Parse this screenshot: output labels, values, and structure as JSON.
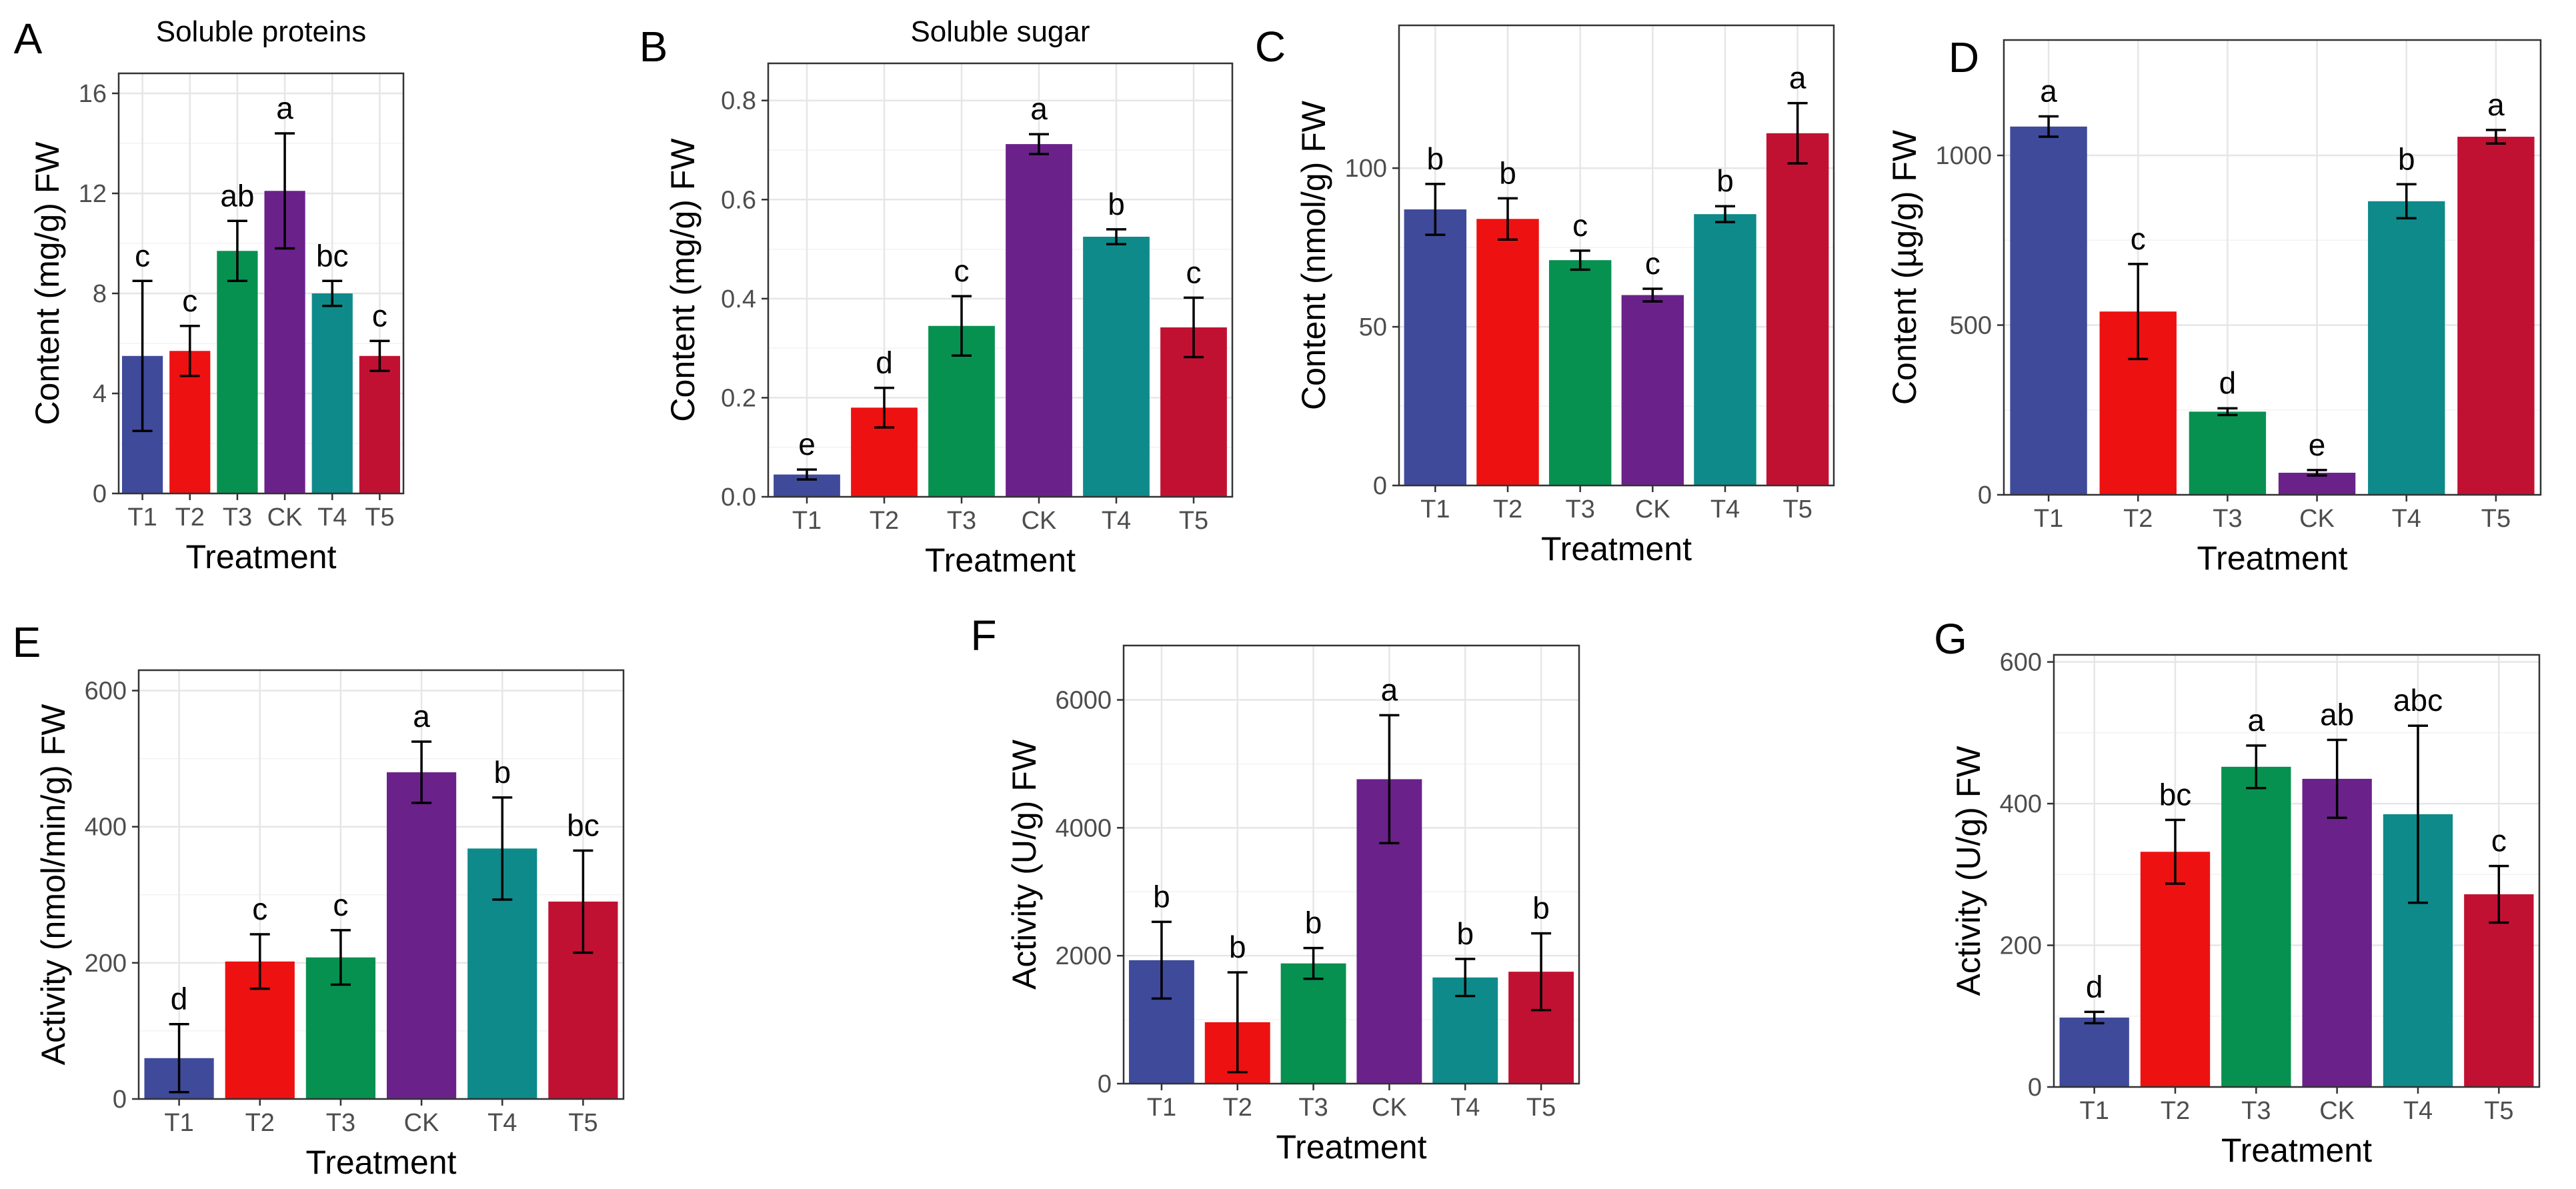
{
  "chart_data": [
    {
      "panel": "A",
      "type": "bar",
      "title": "Soluble proteins",
      "xlabel": "Treatment",
      "ylabel": "Content (mg/g) FW",
      "categories": [
        "T1",
        "T2",
        "T3",
        "CK",
        "T4",
        "T5"
      ],
      "values": [
        5.5,
        5.7,
        9.7,
        12.1,
        8.0,
        5.5
      ],
      "errors": [
        3.0,
        1.0,
        1.2,
        2.3,
        0.5,
        0.6
      ],
      "significance": [
        "c",
        "c",
        "ab",
        "a",
        "bc",
        "c"
      ],
      "ylim": [
        0,
        16.8
      ],
      "yticks": [
        0,
        4,
        8,
        12,
        16
      ],
      "ytick_labels": [
        "0",
        "4",
        "8",
        "12",
        "16"
      ],
      "colors": [
        "#3F4A9A",
        "#EE1111",
        "#079150",
        "#6A228A",
        "#0E8A8A",
        "#C11133"
      ],
      "grid": true,
      "legend": "none"
    },
    {
      "panel": "B",
      "type": "bar",
      "title": "Soluble sugar",
      "xlabel": "Treatment",
      "ylabel": "Content (mg/g) FW",
      "categories": [
        "T1",
        "T2",
        "T3",
        "CK",
        "T4",
        "T5"
      ],
      "values": [
        0.045,
        0.18,
        0.345,
        0.712,
        0.525,
        0.342
      ],
      "errors": [
        0.01,
        0.04,
        0.06,
        0.02,
        0.015,
        0.06
      ],
      "significance": [
        "e",
        "d",
        "c",
        "a",
        "b",
        "c"
      ],
      "ylim": [
        0,
        0.875
      ],
      "yticks": [
        0,
        0.2,
        0.4,
        0.6,
        0.8
      ],
      "ytick_labels": [
        "0.0",
        "0.2",
        "0.4",
        "0.6",
        "0.8"
      ],
      "colors": [
        "#3F4A9A",
        "#EE1111",
        "#079150",
        "#6A228A",
        "#0E8A8A",
        "#C11133"
      ],
      "grid": true,
      "legend": "none"
    },
    {
      "panel": "C",
      "type": "bar",
      "title": "",
      "xlabel": "Treatment",
      "ylabel": "Content (nmol/g) FW",
      "categories": [
        "T1",
        "T2",
        "T3",
        "CK",
        "T4",
        "T5"
      ],
      "values": [
        87,
        84,
        71,
        60,
        85.5,
        111
      ],
      "errors": [
        8,
        6.5,
        3,
        2,
        2.5,
        9.5
      ],
      "significance": [
        "b",
        "b",
        "c",
        "c",
        "b",
        "a"
      ],
      "ylim": [
        0,
        145
      ],
      "yticks": [
        0,
        50,
        100
      ],
      "ytick_labels": [
        "0",
        "50",
        "100"
      ],
      "colors": [
        "#3F4A9A",
        "#EE1111",
        "#079150",
        "#6A228A",
        "#0E8A8A",
        "#C11133"
      ],
      "grid": true,
      "legend": "none"
    },
    {
      "panel": "D",
      "type": "bar",
      "title": "",
      "xlabel": "Treatment",
      "ylabel": "Content (µg/g) FW",
      "categories": [
        "T1",
        "T2",
        "T3",
        "CK",
        "T4",
        "T5"
      ],
      "values": [
        1085,
        540,
        245,
        65,
        865,
        1055
      ],
      "errors": [
        30,
        140,
        10,
        8,
        50,
        20
      ],
      "significance": [
        "a",
        "c",
        "d",
        "e",
        "b",
        "a"
      ],
      "ylim": [
        0,
        1340
      ],
      "yticks": [
        0,
        500,
        1000
      ],
      "ytick_labels": [
        "0",
        "500",
        "1000"
      ],
      "colors": [
        "#3F4A9A",
        "#EE1111",
        "#079150",
        "#6A228A",
        "#0E8A8A",
        "#C11133"
      ],
      "grid": true,
      "legend": "none"
    },
    {
      "panel": "E",
      "type": "bar",
      "title": "",
      "xlabel": "Treatment",
      "ylabel": "Activity (nmol/min/g) FW",
      "categories": [
        "T1",
        "T2",
        "T3",
        "CK",
        "T4",
        "T5"
      ],
      "values": [
        60,
        202,
        208,
        480,
        368,
        290
      ],
      "errors": [
        50,
        40,
        40,
        45,
        75,
        75
      ],
      "significance": [
        "d",
        "c",
        "c",
        "a",
        "b",
        "bc"
      ],
      "ylim": [
        0,
        630
      ],
      "yticks": [
        0,
        200,
        400,
        600
      ],
      "ytick_labels": [
        "0",
        "200",
        "400",
        "600"
      ],
      "colors": [
        "#3F4A9A",
        "#EE1111",
        "#079150",
        "#6A228A",
        "#0E8A8A",
        "#C11133"
      ],
      "grid": true,
      "legend": "none"
    },
    {
      "panel": "F",
      "type": "bar",
      "title": "",
      "xlabel": "Treatment",
      "ylabel": "Activity (U/g) FW",
      "categories": [
        "T1",
        "T2",
        "T3",
        "CK",
        "T4",
        "T5"
      ],
      "values": [
        1930,
        960,
        1880,
        4760,
        1660,
        1750
      ],
      "errors": [
        600,
        780,
        240,
        1000,
        290,
        600
      ],
      "significance": [
        "b",
        "b",
        "b",
        "a",
        "b",
        "b"
      ],
      "ylim": [
        0,
        6850
      ],
      "yticks": [
        0,
        2000,
        4000,
        6000
      ],
      "ytick_labels": [
        "0",
        "2000",
        "4000",
        "6000"
      ],
      "colors": [
        "#3F4A9A",
        "#EE1111",
        "#079150",
        "#6A228A",
        "#0E8A8A",
        "#C11133"
      ],
      "grid": true,
      "legend": "none"
    },
    {
      "panel": "G",
      "type": "bar",
      "title": "",
      "xlabel": "Treatment",
      "ylabel": "Activity (U/g) FW",
      "categories": [
        "T1",
        "T2",
        "T3",
        "CK",
        "T4",
        "T5"
      ],
      "values": [
        98,
        332,
        452,
        435,
        385,
        272
      ],
      "errors": [
        8,
        45,
        30,
        55,
        125,
        40
      ],
      "significance": [
        "d",
        "bc",
        "a",
        "ab",
        "abc",
        "c"
      ],
      "ylim": [
        0,
        610
      ],
      "yticks": [
        0,
        200,
        400,
        600
      ],
      "ytick_labels": [
        "0",
        "200",
        "400",
        "600"
      ],
      "colors": [
        "#3F4A9A",
        "#EE1111",
        "#079150",
        "#6A228A",
        "#0E8A8A",
        "#C11133"
      ],
      "grid": true,
      "legend": "none"
    }
  ]
}
